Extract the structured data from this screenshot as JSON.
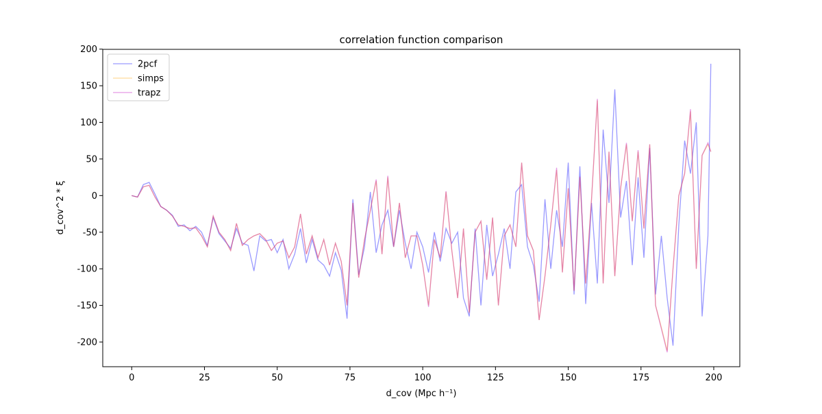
{
  "chart_data": {
    "type": "line",
    "title": "correlation function comparison",
    "xlabel": "d_cov (Mpc h⁻¹)",
    "ylabel": "d_cov^2 * ξ",
    "x": [
      0,
      2,
      4,
      6,
      8,
      10,
      12,
      14,
      16,
      18,
      20,
      22,
      24,
      26,
      28,
      30,
      32,
      34,
      36,
      38,
      40,
      42,
      44,
      46,
      48,
      50,
      52,
      54,
      56,
      58,
      60,
      62,
      64,
      66,
      68,
      70,
      72,
      74,
      76,
      78,
      80,
      82,
      84,
      86,
      88,
      90,
      92,
      94,
      96,
      98,
      100,
      102,
      104,
      106,
      108,
      110,
      112,
      114,
      116,
      118,
      120,
      122,
      124,
      126,
      128,
      130,
      132,
      134,
      136,
      138,
      140,
      142,
      144,
      146,
      148,
      150,
      152,
      154,
      156,
      158,
      160,
      162,
      164,
      166,
      168,
      170,
      172,
      174,
      176,
      178,
      180,
      182,
      184,
      186,
      188,
      190,
      192,
      194,
      196,
      198,
      199
    ],
    "series": [
      {
        "name": "2pcf",
        "color": "#0000ff",
        "opacity": 0.4,
        "values": [
          0,
          -2,
          15,
          18,
          2,
          -15,
          -20,
          -27,
          -42,
          -40,
          -48,
          -42,
          -50,
          -68,
          -30,
          -52,
          -62,
          -72,
          -45,
          -65,
          -68,
          -103,
          -55,
          -62,
          -60,
          -78,
          -60,
          -100,
          -80,
          -45,
          -92,
          -60,
          -88,
          -95,
          -110,
          -78,
          -102,
          -168,
          -5,
          -108,
          -70,
          5,
          -78,
          -40,
          -20,
          -70,
          -20,
          -65,
          -100,
          -50,
          -70,
          -105,
          -50,
          -90,
          -45,
          -65,
          -50,
          -140,
          -165,
          -45,
          -150,
          -40,
          -110,
          -80,
          -45,
          -100,
          5,
          15,
          -70,
          -95,
          -145,
          -5,
          -100,
          -20,
          -70,
          45,
          -135,
          40,
          -148,
          -10,
          -120,
          90,
          -10,
          145,
          -30,
          20,
          -95,
          25,
          -85,
          65,
          -135,
          -55,
          -140,
          -205,
          -40,
          75,
          30,
          100,
          -165,
          -55,
          180
        ]
      },
      {
        "name": "simps",
        "color": "#ffa500",
        "opacity": 0.4,
        "values": [
          0,
          -2,
          12,
          14,
          -2,
          -15,
          -20,
          -28,
          -40,
          -42,
          -45,
          -44,
          -55,
          -70,
          -28,
          -50,
          -60,
          -75,
          -38,
          -68,
          -60,
          -55,
          -52,
          -60,
          -75,
          -65,
          -62,
          -85,
          -70,
          -25,
          -80,
          -55,
          -85,
          -60,
          -95,
          -65,
          -90,
          -150,
          -10,
          -112,
          -60,
          -20,
          20,
          -80,
          25,
          -70,
          -10,
          -85,
          -55,
          -55,
          -95,
          -150,
          -60,
          -85,
          5,
          -75,
          -140,
          -45,
          -160,
          -50,
          -35,
          -115,
          -30,
          -150,
          -55,
          -40,
          -70,
          45,
          -55,
          -75,
          -170,
          -110,
          -40,
          35,
          -105,
          10,
          -130,
          25,
          -120,
          -5,
          130,
          -120,
          60,
          -110,
          10,
          70,
          -35,
          60,
          -45,
          70,
          -150,
          -180,
          -212,
          -100,
          0,
          30,
          115,
          -100,
          55,
          70,
          60
        ]
      },
      {
        "name": "trapz",
        "color": "#bf00bf",
        "opacity": 0.4,
        "values": [
          0,
          -2,
          12,
          14,
          -2,
          -15,
          -20,
          -28,
          -40,
          -42,
          -45,
          -44,
          -55,
          -70,
          -28,
          -50,
          -60,
          -75,
          -38,
          -68,
          -60,
          -55,
          -52,
          -60,
          -75,
          -65,
          -62,
          -85,
          -70,
          -25,
          -80,
          -55,
          -85,
          -60,
          -95,
          -65,
          -90,
          -150,
          -10,
          -112,
          -60,
          -20,
          22,
          -80,
          27,
          -70,
          -10,
          -85,
          -55,
          -55,
          -95,
          -152,
          -60,
          -85,
          6,
          -75,
          -140,
          -45,
          -160,
          -50,
          -35,
          -115,
          -30,
          -150,
          -55,
          -40,
          -70,
          45,
          -55,
          -75,
          -170,
          -110,
          -40,
          38,
          -105,
          10,
          -130,
          26,
          -120,
          -5,
          132,
          -120,
          60,
          -110,
          10,
          72,
          -35,
          62,
          -45,
          70,
          -150,
          -182,
          -214,
          -100,
          0,
          30,
          118,
          -100,
          55,
          72,
          60
        ]
      }
    ],
    "xlim": [
      -9.95,
      208.95
    ],
    "ylim": [
      -233.7,
      199.7
    ],
    "xticks": [
      0,
      25,
      50,
      75,
      100,
      125,
      150,
      175,
      200
    ],
    "yticks": [
      -200,
      -150,
      -100,
      -50,
      0,
      50,
      100,
      150,
      200
    ],
    "legend": "upper left"
  }
}
